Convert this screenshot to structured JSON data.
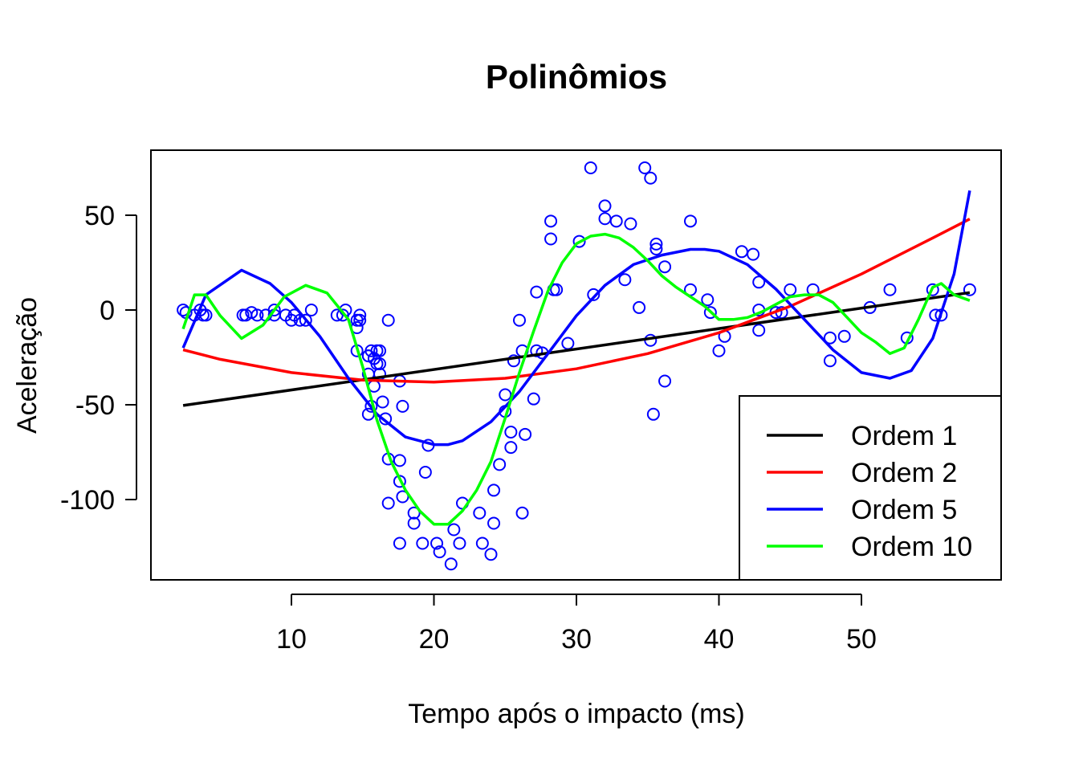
{
  "chart_data": {
    "type": "scatter",
    "title": "Polinômios",
    "xlabel": "Tempo após o impacto (ms)",
    "ylabel": "Aceleração",
    "xlim": [
      0,
      60
    ],
    "ylim": [
      -140,
      80
    ],
    "xticks": [
      10,
      20,
      30,
      40,
      50
    ],
    "yticks": [
      -100,
      -50,
      0,
      50
    ],
    "grid": false,
    "legend_position": "bottom-right",
    "points": {
      "color": "#0000ff",
      "x": [
        2.4,
        2.6,
        3.2,
        3.6,
        3.8,
        4.0,
        6.6,
        6.8,
        7.2,
        7.6,
        8.2,
        8.8,
        8.8,
        9.6,
        10.0,
        10.2,
        10.6,
        11.0,
        11.4,
        13.2,
        13.6,
        13.8,
        14.6,
        14.6,
        14.6,
        14.8,
        14.8,
        15.4,
        15.4,
        15.4,
        15.4,
        15.6,
        15.6,
        15.8,
        15.8,
        16.0,
        16.0,
        16.2,
        16.2,
        16.2,
        16.4,
        16.6,
        16.8,
        16.8,
        16.8,
        17.6,
        17.6,
        17.6,
        17.6,
        17.8,
        17.8,
        18.6,
        18.6,
        19.2,
        19.4,
        19.6,
        20.2,
        20.4,
        21.2,
        21.4,
        21.8,
        22.0,
        23.2,
        23.4,
        24.0,
        24.2,
        24.2,
        24.6,
        25.0,
        25.0,
        25.4,
        25.4,
        25.6,
        26.0,
        26.2,
        26.2,
        26.4,
        27.0,
        27.2,
        27.2,
        27.6,
        28.2,
        28.2,
        28.4,
        28.6,
        29.4,
        30.2,
        31.0,
        31.2,
        32.0,
        32.0,
        32.8,
        33.4,
        33.8,
        34.4,
        34.8,
        35.2,
        35.2,
        35.4,
        35.6,
        35.6,
        36.2,
        36.2,
        38.0,
        38.0,
        39.2,
        39.4,
        40.0,
        40.4,
        41.6,
        42.4,
        42.8,
        42.8,
        42.8,
        44.0,
        44.4,
        45.0,
        46.6,
        47.8,
        47.8,
        48.8,
        50.6,
        52.0,
        53.2,
        55.0,
        55.2,
        55.6,
        57.6
      ],
      "y": [
        0.0,
        -1.3,
        -2.7,
        0.0,
        -2.7,
        -2.7,
        -2.7,
        -2.7,
        -1.3,
        -2.7,
        -2.7,
        0.0,
        -2.7,
        -2.7,
        -5.4,
        -2.7,
        -5.4,
        -5.4,
        0.0,
        -2.7,
        -2.7,
        0.0,
        -5.4,
        -9.3,
        -21.5,
        -2.7,
        -5.4,
        -24.2,
        -24.2,
        -33.8,
        -55.0,
        -21.5,
        -50.8,
        -40.2,
        -25.6,
        -21.5,
        -28.4,
        -33.8,
        -28.4,
        -21.5,
        -48.5,
        -57.4,
        -78.6,
        -101.9,
        -5.4,
        -79.4,
        -90.4,
        -123.1,
        -37.5,
        -98.5,
        -50.8,
        -107.1,
        -112.5,
        -123.1,
        -85.6,
        -71.4,
        -123.1,
        -127.6,
        -134.0,
        -115.9,
        -123.1,
        -101.9,
        -107.1,
        -123.1,
        -128.9,
        -112.5,
        -95.1,
        -81.5,
        -53.5,
        -44.7,
        -64.4,
        -72.5,
        -26.8,
        -5.4,
        -107.1,
        -21.5,
        -65.6,
        -46.9,
        9.5,
        -21.5,
        -22.6,
        37.5,
        46.9,
        10.7,
        10.7,
        -17.6,
        36.2,
        75.0,
        8.1,
        48.2,
        54.9,
        46.9,
        16.0,
        45.5,
        1.3,
        75.0,
        69.6,
        -16.0,
        -55.0,
        34.8,
        32.2,
        22.8,
        -37.5,
        46.9,
        10.7,
        5.4,
        -1.3,
        -21.5,
        -13.9,
        30.8,
        29.4,
        14.7,
        -10.7,
        0.0,
        -1.3,
        -1.3,
        10.7,
        10.7,
        -14.7,
        -26.8,
        -13.9,
        1.3,
        10.7,
        -14.7,
        10.7,
        -2.7,
        -2.7,
        10.7
      ]
    },
    "series": [
      {
        "name": "Ordem 1",
        "color": "#000000",
        "x": [
          2.4,
          57.6
        ],
        "y": [
          -50.4,
          9.2
        ]
      },
      {
        "name": "Ordem 2",
        "color": "#ff0000",
        "x": [
          2.4,
          5,
          10,
          15,
          20,
          25,
          30,
          35,
          40,
          45,
          50,
          55,
          57.6
        ],
        "y": [
          -21,
          -26,
          -33,
          -37,
          -38,
          -36,
          -31,
          -23,
          -12,
          2,
          19,
          38,
          48
        ]
      },
      {
        "name": "Ordem 5",
        "color": "#0000ff",
        "x": [
          2.4,
          4,
          6.5,
          8.5,
          10,
          12,
          14,
          16,
          18,
          20,
          21,
          22,
          24,
          26,
          28,
          30,
          32,
          34,
          36,
          38,
          39,
          40,
          42,
          44,
          46,
          48,
          50,
          52,
          53.5,
          55,
          56.5,
          57.6
        ],
        "y": [
          -20,
          8,
          21,
          14,
          4,
          -14,
          -36,
          -55,
          -67,
          -71,
          -71,
          -69,
          -59,
          -43,
          -23,
          -3,
          13,
          24,
          29,
          32,
          32,
          31,
          24,
          11,
          -5,
          -21,
          -33,
          -36,
          -32,
          -15,
          19,
          63
        ]
      },
      {
        "name": "Ordem 10",
        "color": "#00ff00",
        "x": [
          2.4,
          3.2,
          4,
          5,
          6.5,
          8,
          9.5,
          11,
          12.5,
          14,
          15,
          16,
          17,
          18,
          19,
          20,
          21,
          22,
          23,
          24,
          25,
          26,
          27,
          28,
          29,
          30,
          31,
          32,
          33,
          34,
          35,
          36,
          37,
          38,
          39,
          40,
          41,
          42,
          43,
          44,
          45,
          46,
          47,
          48,
          49,
          50,
          51,
          52,
          53,
          54,
          55,
          55.6,
          56.5,
          57.6
        ],
        "y": [
          -10,
          8,
          8,
          -3,
          -15,
          -8,
          7,
          13,
          9,
          -5,
          -30,
          -58,
          -80,
          -95,
          -106,
          -113,
          -113,
          -106,
          -95,
          -80,
          -57,
          -33,
          -11,
          10,
          25,
          35,
          39,
          40,
          38,
          33,
          26,
          18,
          12,
          7,
          2,
          -5,
          -5,
          -4,
          -1,
          3,
          7,
          8,
          8,
          4,
          -4,
          -12,
          -17,
          -23,
          -20,
          -5,
          12,
          14,
          8,
          5
        ]
      }
    ]
  }
}
